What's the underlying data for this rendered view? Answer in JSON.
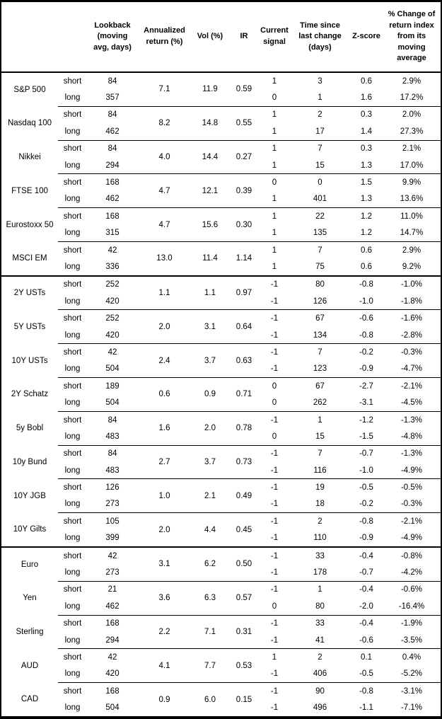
{
  "table": {
    "headers": {
      "asset": "",
      "leg": "",
      "lookback": "Lookback\n(moving\navg, days)",
      "ann_return": "Annualized\nreturn (%)",
      "vol": "Vol (%)",
      "ir": "IR",
      "signal": "Current\nsignal",
      "time_since": "Time since\nlast change\n(days)",
      "zscore": "Z-score",
      "pct_change": "% Change of\nreturn index\nfrom its\nmoving\naverage"
    },
    "leg_labels": {
      "short": "short",
      "long": "long"
    },
    "groups": [
      {
        "name": "S&P 500",
        "ret": "7.1",
        "vol": "11.9",
        "ir": "0.59",
        "section_end": false,
        "short": {
          "lookback": "84",
          "signal": "1",
          "time_since": "3",
          "zscore": "0.6",
          "pct_change": "2.9%"
        },
        "long": {
          "lookback": "357",
          "signal": "0",
          "time_since": "1",
          "zscore": "1.6",
          "pct_change": "17.2%"
        }
      },
      {
        "name": "Nasdaq 100",
        "ret": "8.2",
        "vol": "14.8",
        "ir": "0.55",
        "section_end": false,
        "short": {
          "lookback": "84",
          "signal": "1",
          "time_since": "2",
          "zscore": "0.3",
          "pct_change": "2.0%"
        },
        "long": {
          "lookback": "462",
          "signal": "1",
          "time_since": "17",
          "zscore": "1.4",
          "pct_change": "27.3%"
        }
      },
      {
        "name": "Nikkei",
        "ret": "4.0",
        "vol": "14.4",
        "ir": "0.27",
        "section_end": false,
        "short": {
          "lookback": "84",
          "signal": "1",
          "time_since": "7",
          "zscore": "0.3",
          "pct_change": "2.1%"
        },
        "long": {
          "lookback": "294",
          "signal": "1",
          "time_since": "15",
          "zscore": "1.3",
          "pct_change": "17.0%"
        }
      },
      {
        "name": "FTSE 100",
        "ret": "4.7",
        "vol": "12.1",
        "ir": "0.39",
        "section_end": false,
        "short": {
          "lookback": "168",
          "signal": "0",
          "time_since": "0",
          "zscore": "1.5",
          "pct_change": "9.9%"
        },
        "long": {
          "lookback": "462",
          "signal": "1",
          "time_since": "401",
          "zscore": "1.3",
          "pct_change": "13.6%"
        }
      },
      {
        "name": "Eurostoxx 50",
        "ret": "4.7",
        "vol": "15.6",
        "ir": "0.30",
        "section_end": false,
        "short": {
          "lookback": "168",
          "signal": "1",
          "time_since": "22",
          "zscore": "1.2",
          "pct_change": "11.0%"
        },
        "long": {
          "lookback": "315",
          "signal": "1",
          "time_since": "135",
          "zscore": "1.2",
          "pct_change": "14.7%"
        }
      },
      {
        "name": "MSCI EM",
        "ret": "13.0",
        "vol": "11.4",
        "ir": "1.14",
        "section_end": true,
        "short": {
          "lookback": "42",
          "signal": "1",
          "time_since": "7",
          "zscore": "0.6",
          "pct_change": "2.9%"
        },
        "long": {
          "lookback": "336",
          "signal": "1",
          "time_since": "75",
          "zscore": "0.6",
          "pct_change": "9.2%"
        }
      },
      {
        "name": "2Y USTs",
        "ret": "1.1",
        "vol": "1.1",
        "ir": "0.97",
        "section_end": false,
        "short": {
          "lookback": "252",
          "signal": "-1",
          "time_since": "80",
          "zscore": "-0.8",
          "pct_change": "-1.0%"
        },
        "long": {
          "lookback": "420",
          "signal": "-1",
          "time_since": "126",
          "zscore": "-1.0",
          "pct_change": "-1.8%"
        }
      },
      {
        "name": "5Y USTs",
        "ret": "2.0",
        "vol": "3.1",
        "ir": "0.64",
        "section_end": false,
        "short": {
          "lookback": "252",
          "signal": "-1",
          "time_since": "67",
          "zscore": "-0.6",
          "pct_change": "-1.6%"
        },
        "long": {
          "lookback": "420",
          "signal": "-1",
          "time_since": "134",
          "zscore": "-0.8",
          "pct_change": "-2.8%"
        }
      },
      {
        "name": "10Y USTs",
        "ret": "2.4",
        "vol": "3.7",
        "ir": "0.63",
        "section_end": false,
        "short": {
          "lookback": "42",
          "signal": "-1",
          "time_since": "7",
          "zscore": "-0.2",
          "pct_change": "-0.3%"
        },
        "long": {
          "lookback": "504",
          "signal": "-1",
          "time_since": "123",
          "zscore": "-0.9",
          "pct_change": "-4.7%"
        }
      },
      {
        "name": "2Y Schatz",
        "ret": "0.6",
        "vol": "0.9",
        "ir": "0.71",
        "section_end": false,
        "short": {
          "lookback": "189",
          "signal": "0",
          "time_since": "67",
          "zscore": "-2.7",
          "pct_change": "-2.1%"
        },
        "long": {
          "lookback": "504",
          "signal": "0",
          "time_since": "262",
          "zscore": "-3.1",
          "pct_change": "-4.5%"
        }
      },
      {
        "name": "5y Bobl",
        "ret": "1.6",
        "vol": "2.0",
        "ir": "0.78",
        "section_end": false,
        "short": {
          "lookback": "84",
          "signal": "-1",
          "time_since": "1",
          "zscore": "-1.2",
          "pct_change": "-1.3%"
        },
        "long": {
          "lookback": "483",
          "signal": "0",
          "time_since": "15",
          "zscore": "-1.5",
          "pct_change": "-4.8%"
        }
      },
      {
        "name": "10y Bund",
        "ret": "2.7",
        "vol": "3.7",
        "ir": "0.73",
        "section_end": false,
        "short": {
          "lookback": "84",
          "signal": "-1",
          "time_since": "7",
          "zscore": "-0.7",
          "pct_change": "-1.3%"
        },
        "long": {
          "lookback": "483",
          "signal": "-1",
          "time_since": "116",
          "zscore": "-1.0",
          "pct_change": "-4.9%"
        }
      },
      {
        "name": "10Y JGB",
        "ret": "1.0",
        "vol": "2.1",
        "ir": "0.49",
        "section_end": false,
        "short": {
          "lookback": "126",
          "signal": "-1",
          "time_since": "19",
          "zscore": "-0.5",
          "pct_change": "-0.5%"
        },
        "long": {
          "lookback": "273",
          "signal": "-1",
          "time_since": "18",
          "zscore": "-0.2",
          "pct_change": "-0.3%"
        }
      },
      {
        "name": "10Y Gilts",
        "ret": "2.0",
        "vol": "4.4",
        "ir": "0.45",
        "section_end": true,
        "short": {
          "lookback": "105",
          "signal": "-1",
          "time_since": "2",
          "zscore": "-0.8",
          "pct_change": "-2.1%"
        },
        "long": {
          "lookback": "399",
          "signal": "-1",
          "time_since": "110",
          "zscore": "-0.9",
          "pct_change": "-4.9%"
        }
      },
      {
        "name": "Euro",
        "ret": "3.1",
        "vol": "6.2",
        "ir": "0.50",
        "section_end": false,
        "short": {
          "lookback": "42",
          "signal": "-1",
          "time_since": "33",
          "zscore": "-0.4",
          "pct_change": "-0.8%"
        },
        "long": {
          "lookback": "273",
          "signal": "-1",
          "time_since": "178",
          "zscore": "-0.7",
          "pct_change": "-4.2%"
        }
      },
      {
        "name": "Yen",
        "ret": "3.6",
        "vol": "6.3",
        "ir": "0.57",
        "section_end": false,
        "short": {
          "lookback": "21",
          "signal": "-1",
          "time_since": "1",
          "zscore": "-0.4",
          "pct_change": "-0.6%"
        },
        "long": {
          "lookback": "462",
          "signal": "0",
          "time_since": "80",
          "zscore": "-2.0",
          "pct_change": "-16.4%"
        }
      },
      {
        "name": "Sterling",
        "ret": "2.2",
        "vol": "7.1",
        "ir": "0.31",
        "section_end": false,
        "short": {
          "lookback": "168",
          "signal": "-1",
          "time_since": "33",
          "zscore": "-0.4",
          "pct_change": "-1.9%"
        },
        "long": {
          "lookback": "294",
          "signal": "-1",
          "time_since": "41",
          "zscore": "-0.6",
          "pct_change": "-3.5%"
        }
      },
      {
        "name": "AUD",
        "ret": "4.1",
        "vol": "7.7",
        "ir": "0.53",
        "section_end": false,
        "short": {
          "lookback": "42",
          "signal": "1",
          "time_since": "2",
          "zscore": "0.1",
          "pct_change": "0.4%"
        },
        "long": {
          "lookback": "420",
          "signal": "-1",
          "time_since": "406",
          "zscore": "-0.5",
          "pct_change": "-5.2%"
        }
      },
      {
        "name": "CAD",
        "ret": "0.9",
        "vol": "6.0",
        "ir": "0.15",
        "section_end": false,
        "short": {
          "lookback": "168",
          "signal": "-1",
          "time_since": "90",
          "zscore": "-0.8",
          "pct_change": "-3.1%"
        },
        "long": {
          "lookback": "504",
          "signal": "-1",
          "time_since": "496",
          "zscore": "-1.1",
          "pct_change": "-7.1%"
        }
      }
    ]
  },
  "colors": {
    "border": "#000000",
    "text": "#000000",
    "background": "#ffffff"
  }
}
